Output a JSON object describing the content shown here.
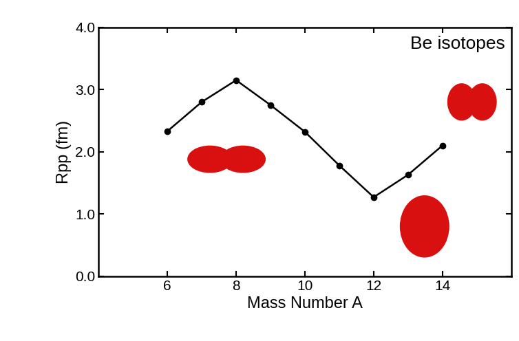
{
  "chart_data": {
    "type": "line",
    "title": "Be isotopes",
    "x": [
      6,
      7,
      8,
      9,
      10,
      11,
      12,
      13,
      14
    ],
    "values": [
      2.33,
      2.8,
      3.15,
      2.75,
      2.32,
      1.78,
      1.27,
      1.63,
      2.1
    ],
    "color": "#000000",
    "marker": "o",
    "line_style": "solid",
    "x_label": "Mass Number A",
    "y_label": "Rpp (fm)",
    "xlim": [
      4,
      16
    ],
    "xticks": [
      6,
      8,
      10,
      12,
      14
    ],
    "ylim": [
      0,
      4
    ],
    "yticks": [
      {
        "value": 0,
        "label": "0.0"
      },
      {
        "value": 1,
        "label": "1.0"
      },
      {
        "value": 2,
        "label": "2.0"
      },
      {
        "value": 3,
        "label": "3.0"
      },
      {
        "value": 4,
        "label": "4.0"
      }
    ],
    "grid": false
  }
}
